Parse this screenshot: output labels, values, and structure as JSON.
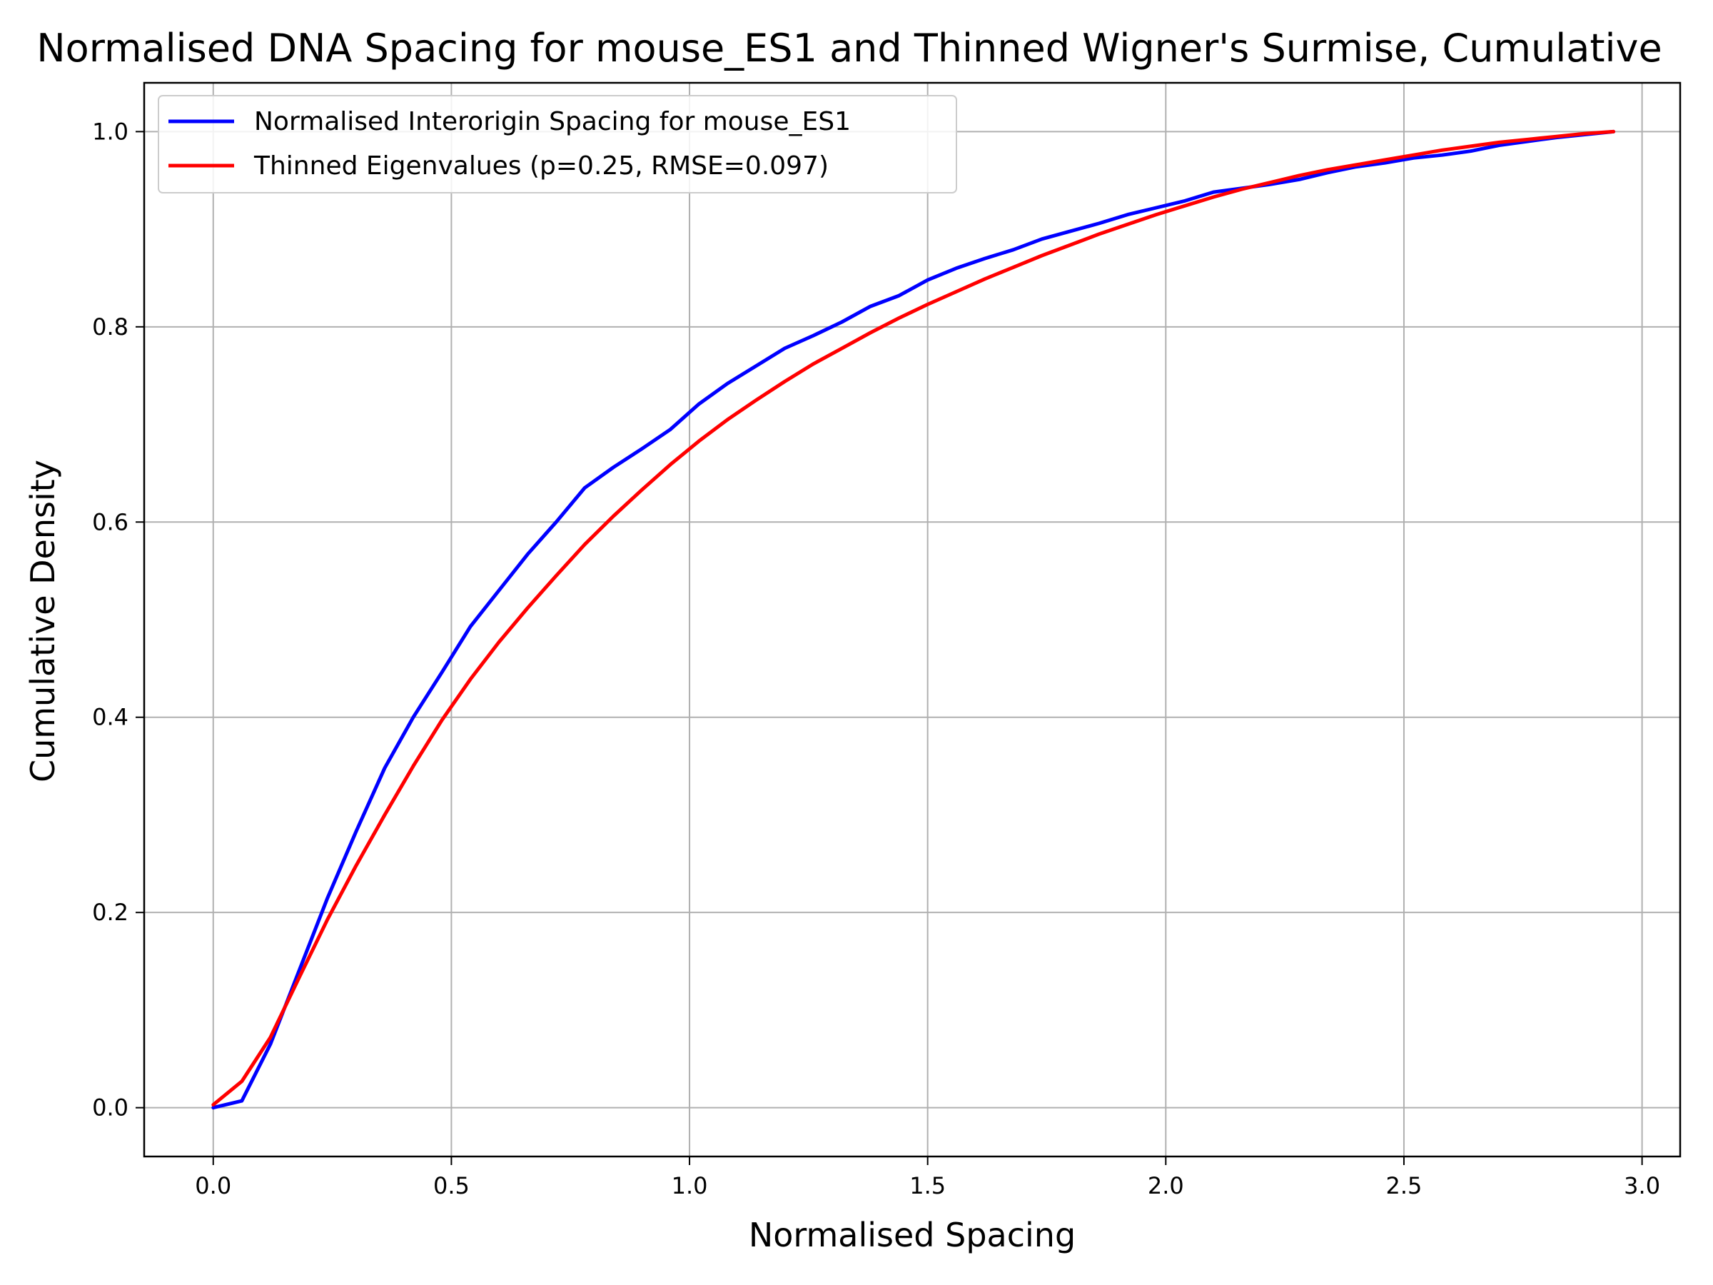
{
  "chart_data": {
    "type": "line",
    "title": "Normalised DNA Spacing for mouse_ES1 and Thinned Wigner's Surmise, Cumulative",
    "xlabel": "Normalised Spacing",
    "ylabel": "Cumulative Density",
    "xlim": [
      -0.145,
      3.08
    ],
    "ylim": [
      -0.05,
      1.05
    ],
    "xticks": [
      0.0,
      0.5,
      1.0,
      1.5,
      2.0,
      2.5,
      3.0
    ],
    "xtick_labels": [
      "0.0",
      "0.5",
      "1.0",
      "1.5",
      "2.0",
      "2.5",
      "3.0"
    ],
    "yticks": [
      0.0,
      0.2,
      0.4,
      0.6,
      0.8,
      1.0
    ],
    "ytick_labels": [
      "0.0",
      "0.2",
      "0.4",
      "0.6",
      "0.8",
      "1.0"
    ],
    "grid": true,
    "legend_position": "top-left",
    "series": [
      {
        "name": "Normalised Interorigin Spacing for mouse_ES1",
        "color": "#0000ff",
        "x": [
          0.0,
          0.06,
          0.12,
          0.18,
          0.24,
          0.3,
          0.36,
          0.42,
          0.48,
          0.54,
          0.6,
          0.66,
          0.72,
          0.78,
          0.84,
          0.9,
          0.96,
          1.02,
          1.08,
          1.14,
          1.2,
          1.26,
          1.32,
          1.38,
          1.44,
          1.5,
          1.56,
          1.62,
          1.68,
          1.74,
          1.8,
          1.86,
          1.92,
          1.98,
          2.04,
          2.1,
          2.16,
          2.22,
          2.28,
          2.34,
          2.4,
          2.46,
          2.52,
          2.58,
          2.64,
          2.7,
          2.76,
          2.82,
          2.88,
          2.94
        ],
        "y": [
          0.0,
          0.007,
          0.065,
          0.14,
          0.215,
          0.283,
          0.348,
          0.4,
          0.446,
          0.493,
          0.53,
          0.567,
          0.6,
          0.635,
          0.656,
          0.675,
          0.695,
          0.721,
          0.742,
          0.76,
          0.778,
          0.791,
          0.805,
          0.821,
          0.832,
          0.848,
          0.86,
          0.87,
          0.879,
          0.89,
          0.898,
          0.906,
          0.915,
          0.922,
          0.929,
          0.938,
          0.942,
          0.946,
          0.951,
          0.958,
          0.964,
          0.968,
          0.973,
          0.976,
          0.98,
          0.986,
          0.99,
          0.994,
          0.997,
          1.0
        ]
      },
      {
        "name": "Thinned Eigenvalues (p=0.25, RMSE=0.097)",
        "color": "#ff0000",
        "x": [
          0.0,
          0.06,
          0.12,
          0.18,
          0.24,
          0.3,
          0.36,
          0.42,
          0.48,
          0.54,
          0.6,
          0.66,
          0.72,
          0.78,
          0.84,
          0.9,
          0.96,
          1.02,
          1.08,
          1.14,
          1.2,
          1.26,
          1.32,
          1.38,
          1.44,
          1.5,
          1.56,
          1.62,
          1.68,
          1.74,
          1.8,
          1.86,
          1.92,
          1.98,
          2.04,
          2.1,
          2.16,
          2.22,
          2.28,
          2.34,
          2.4,
          2.46,
          2.52,
          2.58,
          2.64,
          2.7,
          2.76,
          2.82,
          2.88,
          2.94
        ],
        "y": [
          0.003,
          0.027,
          0.072,
          0.133,
          0.193,
          0.248,
          0.3,
          0.35,
          0.397,
          0.439,
          0.477,
          0.512,
          0.545,
          0.577,
          0.606,
          0.633,
          0.659,
          0.683,
          0.705,
          0.725,
          0.744,
          0.762,
          0.778,
          0.794,
          0.809,
          0.823,
          0.836,
          0.849,
          0.861,
          0.873,
          0.884,
          0.895,
          0.905,
          0.915,
          0.924,
          0.933,
          0.941,
          0.948,
          0.955,
          0.961,
          0.966,
          0.971,
          0.976,
          0.981,
          0.985,
          0.989,
          0.992,
          0.995,
          0.998,
          1.0
        ]
      }
    ]
  }
}
